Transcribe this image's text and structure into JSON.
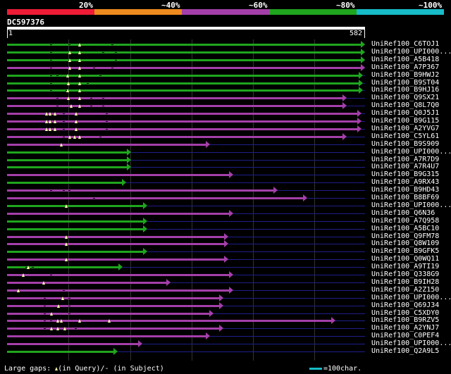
{
  "legend": {
    "items": [
      {
        "label": "20%",
        "color": "#ee1c36"
      },
      {
        "label": "~40%",
        "color": "#ee8b1e"
      },
      {
        "label": "~60%",
        "color": "#a43fa9"
      },
      {
        "label": "~80%",
        "color": "#1fa51e"
      },
      {
        "label": "~100%",
        "color": "#17bcc8"
      }
    ]
  },
  "query": {
    "id": "DC597376",
    "start": "1",
    "end": "582",
    "length": 582
  },
  "colors": {
    "green": "#1fa51e",
    "purple": "#a43fa9",
    "gap_line": "#1e1e8a"
  },
  "hits": [
    {
      "label": "UniRef100_C6TOJ1",
      "color": "green",
      "end": 582,
      "gaps": [
        118
      ],
      "ticks": [
        70,
        100,
        170
      ]
    },
    {
      "label": "UniRef100_UPI000...",
      "color": "green",
      "end": 582,
      "gaps": [
        102,
        118
      ],
      "ticks": [
        70,
        155,
        175
      ]
    },
    {
      "label": "UniRef100_A5B418",
      "color": "green",
      "end": 582,
      "gaps": [
        102,
        118
      ],
      "ticks": [
        70,
        100,
        175
      ]
    },
    {
      "label": "UniRef100_A7P367",
      "color": "purple",
      "end": 582,
      "gaps": [
        102,
        118
      ],
      "ticks": [
        70,
        140,
        170
      ]
    },
    {
      "label": "UniRef100_B9HWJ2",
      "color": "green",
      "end": 578,
      "gaps": [
        98,
        118
      ],
      "ticks": [
        70,
        80,
        150
      ]
    },
    {
      "label": "UniRef100_B9ST04",
      "color": "green",
      "end": 578,
      "gaps": [
        100,
        118
      ],
      "ticks": [
        70,
        130
      ]
    },
    {
      "label": "UniRef100_B9HJ16",
      "color": "green",
      "end": 578,
      "gaps": [
        98,
        118
      ],
      "ticks": [
        70,
        95
      ]
    },
    {
      "label": "UniRef100_Q9SX21",
      "color": "purple",
      "end": 552,
      "gaps": [
        100,
        118
      ],
      "ticks": [
        80,
        135,
        155
      ]
    },
    {
      "label": "UniRef100_Q8L7Q0",
      "color": "purple",
      "end": 552,
      "gaps": [
        104,
        118
      ],
      "ticks": [
        80,
        135,
        155
      ]
    },
    {
      "label": "UniRef100_Q0J5J1",
      "color": "purple",
      "end": 576,
      "gaps": [
        64,
        70,
        78,
        112
      ],
      "ticks": [
        90,
        160
      ]
    },
    {
      "label": "UniRef100_B9G115",
      "color": "purple",
      "end": 576,
      "gaps": [
        64,
        70,
        78,
        112
      ],
      "ticks": [
        90,
        160
      ]
    },
    {
      "label": "UniRef100_A2YVG7",
      "color": "purple",
      "end": 576,
      "gaps": [
        64,
        70,
        78,
        112
      ],
      "ticks": [
        90,
        160
      ]
    },
    {
      "label": "UniRef100_C5YL61",
      "color": "purple",
      "end": 552,
      "gaps": [
        102,
        110,
        118
      ],
      "ticks": [
        90,
        150
      ]
    },
    {
      "label": "UniRef100_B9S909",
      "color": "purple",
      "end": 330,
      "gaps": [
        88
      ],
      "ticks": []
    },
    {
      "label": "UniRef100_UPI000...",
      "color": "green",
      "end": 202,
      "gaps": [],
      "ticks": []
    },
    {
      "label": "UniRef100_A7R7D9",
      "color": "green",
      "end": 202,
      "gaps": [],
      "ticks": []
    },
    {
      "label": "UniRef100_A7R4U7",
      "color": "green",
      "end": 202,
      "gaps": [],
      "ticks": []
    },
    {
      "label": "UniRef100_B9G315",
      "color": "purple",
      "end": 368,
      "gaps": [],
      "ticks": []
    },
    {
      "label": "UniRef100_A9RX43",
      "color": "green",
      "end": 194,
      "gaps": [],
      "ticks": []
    },
    {
      "label": "UniRef100_B9HD43",
      "color": "purple",
      "end": 440,
      "gaps": [],
      "ticks": [
        70,
        90,
        100
      ]
    },
    {
      "label": "UniRef100_B8BF69",
      "color": "purple",
      "end": 488,
      "gaps": [],
      "ticks": [
        140
      ]
    },
    {
      "label": "UniRef100_UPI000...",
      "color": "green",
      "end": 228,
      "gaps": [
        96
      ],
      "ticks": []
    },
    {
      "label": "UniRef100_Q6N36",
      "color": "purple",
      "end": 368,
      "gaps": [],
      "ticks": []
    },
    {
      "label": "UniRef100_A7Q958",
      "color": "green",
      "end": 228,
      "gaps": [],
      "ticks": []
    },
    {
      "label": "UniRef100_A5BC10",
      "color": "green",
      "end": 228,
      "gaps": [],
      "ticks": []
    },
    {
      "label": "UniRef100_Q9FM78",
      "color": "purple",
      "end": 360,
      "gaps": [
        96
      ],
      "ticks": []
    },
    {
      "label": "UniRef100_Q8W109",
      "color": "purple",
      "end": 360,
      "gaps": [
        96
      ],
      "ticks": []
    },
    {
      "label": "UniRef100_B9GFK5",
      "color": "green",
      "end": 228,
      "gaps": [],
      "ticks": []
    },
    {
      "label": "UniRef100_Q0WQ11",
      "color": "purple",
      "end": 360,
      "gaps": [
        96
      ],
      "ticks": []
    },
    {
      "label": "UniRef100_A9TI19",
      "color": "green",
      "end": 188,
      "gaps": [
        34
      ],
      "ticks": [
        30,
        40
      ]
    },
    {
      "label": "UniRef100_Q338G9",
      "color": "purple",
      "end": 368,
      "gaps": [
        26
      ],
      "ticks": [
        70
      ]
    },
    {
      "label": "UniRef100_B9IH28",
      "color": "purple",
      "end": 266,
      "gaps": [
        60
      ],
      "ticks": []
    },
    {
      "label": "UniRef100_A2Z150",
      "color": "purple",
      "end": 368,
      "gaps": [
        18
      ],
      "ticks": [
        90
      ]
    },
    {
      "label": "UniRef100_UPI000...",
      "color": "purple",
      "end": 352,
      "gaps": [
        90
      ],
      "ticks": [
        60,
        100
      ]
    },
    {
      "label": "UniRef100_Q69J34",
      "color": "purple",
      "end": 352,
      "gaps": [
        84
      ],
      "ticks": [
        60,
        100
      ]
    },
    {
      "label": "UniRef100_C5XDY0",
      "color": "purple",
      "end": 336,
      "gaps": [
        72
      ],
      "ticks": [
        60,
        100
      ]
    },
    {
      "label": "UniRef100_B9RZV5",
      "color": "purple",
      "end": 534,
      "gaps": [
        82,
        88,
        118,
        166
      ],
      "ticks": [
        60,
        70
      ]
    },
    {
      "label": "UniRef100_A2YNJ7",
      "color": "purple",
      "end": 352,
      "gaps": [
        72,
        82,
        94
      ],
      "ticks": [
        60,
        110
      ]
    },
    {
      "label": "UniRef100_C0PEF4",
      "color": "purple",
      "end": 330,
      "gaps": [],
      "ticks": []
    },
    {
      "label": "UniRef100_UPI000...",
      "color": "purple",
      "end": 220,
      "gaps": [],
      "ticks": []
    },
    {
      "label": "UniRef100_Q2A9L5",
      "color": "green",
      "end": 180,
      "gaps": [],
      "ticks": []
    }
  ],
  "footer": {
    "large_gaps_prefix": "Large gaps: ",
    "large_gaps_suffix": "(in Query)/- (in Subject)",
    "scale_label": "=100char."
  }
}
